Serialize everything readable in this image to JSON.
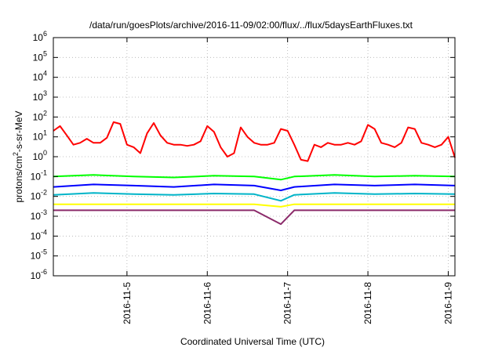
{
  "chart_data": {
    "type": "line",
    "title": "/data/run/goesPlots/archive/2016-11-09/02:00/flux/../flux/5daysEarthFluxes.txt",
    "xlabel": "Coordinated Universal Time (UTC)",
    "ylabel": "protons/cm2-s-sr-MeV",
    "ylabel_parts": {
      "before_sup": "protons/cm",
      "sup": "2",
      "after_sup": "-s-sr-MeV"
    },
    "y_scale": "log",
    "ylim": [
      1e-06,
      1000000.0
    ],
    "y_ticks": [
      {
        "value": 1e-06,
        "base": "10",
        "exp": "-6"
      },
      {
        "value": 1e-05,
        "base": "10",
        "exp": "-5"
      },
      {
        "value": 0.0001,
        "base": "10",
        "exp": "-4"
      },
      {
        "value": 0.001,
        "base": "10",
        "exp": "-3"
      },
      {
        "value": 0.01,
        "base": "10",
        "exp": "-2"
      },
      {
        "value": 0.1,
        "base": "10",
        "exp": "-1"
      },
      {
        "value": 1,
        "base": "10",
        "exp": "0"
      },
      {
        "value": 10,
        "base": "10",
        "exp": "1"
      },
      {
        "value": 100,
        "base": "10",
        "exp": "2"
      },
      {
        "value": 1000,
        "base": "10",
        "exp": "3"
      },
      {
        "value": 10000,
        "base": "10",
        "exp": "4"
      },
      {
        "value": 100000,
        "base": "10",
        "exp": "5"
      },
      {
        "value": 1000000,
        "base": "10",
        "exp": "6"
      }
    ],
    "xlim": [
      "2016-11-04 02:00",
      "2016-11-09 02:00"
    ],
    "x_ticks": [
      "2016-11-5",
      "2016-11-6",
      "2016-11-7",
      "2016-11-8",
      "2016-11-9"
    ],
    "grid": true,
    "series": [
      {
        "color": "#ff0000",
        "x": [
          "2016-11-04 02:00",
          "2016-11-04 04:00",
          "2016-11-04 06:00",
          "2016-11-04 08:00",
          "2016-11-04 10:00",
          "2016-11-04 12:00",
          "2016-11-04 14:00",
          "2016-11-04 16:00",
          "2016-11-04 18:00",
          "2016-11-04 20:00",
          "2016-11-04 22:00",
          "2016-11-05 00:00",
          "2016-11-05 02:00",
          "2016-11-05 04:00",
          "2016-11-05 06:00",
          "2016-11-05 08:00",
          "2016-11-05 10:00",
          "2016-11-05 12:00",
          "2016-11-05 14:00",
          "2016-11-05 16:00",
          "2016-11-05 18:00",
          "2016-11-05 20:00",
          "2016-11-05 22:00",
          "2016-11-06 00:00",
          "2016-11-06 02:00",
          "2016-11-06 04:00",
          "2016-11-06 06:00",
          "2016-11-06 08:00",
          "2016-11-06 10:00",
          "2016-11-06 12:00",
          "2016-11-06 14:00",
          "2016-11-06 16:00",
          "2016-11-06 18:00",
          "2016-11-06 20:00",
          "2016-11-06 22:00",
          "2016-11-07 00:00",
          "2016-11-07 02:00",
          "2016-11-07 04:00",
          "2016-11-07 06:00",
          "2016-11-07 08:00",
          "2016-11-07 10:00",
          "2016-11-07 12:00",
          "2016-11-07 14:00",
          "2016-11-07 16:00",
          "2016-11-07 18:00",
          "2016-11-07 20:00",
          "2016-11-07 22:00",
          "2016-11-08 00:00",
          "2016-11-08 02:00",
          "2016-11-08 04:00",
          "2016-11-08 06:00",
          "2016-11-08 08:00",
          "2016-11-08 10:00",
          "2016-11-08 12:00",
          "2016-11-08 14:00",
          "2016-11-08 16:00",
          "2016-11-08 18:00",
          "2016-11-08 20:00",
          "2016-11-08 22:00",
          "2016-11-09 00:00",
          "2016-11-09 02:00"
        ],
        "values": [
          20,
          35,
          12,
          4,
          5,
          8,
          5,
          5,
          9,
          55,
          45,
          4,
          3,
          1.5,
          15,
          50,
          12,
          5,
          4,
          4,
          3.5,
          4,
          6,
          35,
          18,
          3,
          1,
          1.5,
          30,
          10,
          5,
          4,
          4,
          5,
          25,
          20,
          4,
          0.7,
          0.6,
          4,
          3,
          5,
          4,
          4,
          5,
          4,
          6,
          40,
          25,
          5,
          4,
          3,
          5,
          30,
          25,
          5,
          4,
          3,
          4,
          10,
          0.9
        ]
      },
      {
        "color": "#00ff00",
        "x": [
          "2016-11-04 02:00",
          "2016-11-04 14:00",
          "2016-11-05 02:00",
          "2016-11-05 14:00",
          "2016-11-06 02:00",
          "2016-11-06 14:00",
          "2016-11-06 22:00",
          "2016-11-07 02:00",
          "2016-11-07 14:00",
          "2016-11-08 02:00",
          "2016-11-08 14:00",
          "2016-11-09 02:00"
        ],
        "values": [
          0.1,
          0.12,
          0.1,
          0.09,
          0.11,
          0.1,
          0.07,
          0.1,
          0.12,
          0.1,
          0.11,
          0.1
        ]
      },
      {
        "color": "#0000ff",
        "x": [
          "2016-11-04 02:00",
          "2016-11-04 14:00",
          "2016-11-05 02:00",
          "2016-11-05 14:00",
          "2016-11-06 02:00",
          "2016-11-06 14:00",
          "2016-11-06 22:00",
          "2016-11-07 02:00",
          "2016-11-07 14:00",
          "2016-11-08 02:00",
          "2016-11-08 14:00",
          "2016-11-09 02:00"
        ],
        "values": [
          0.03,
          0.04,
          0.035,
          0.03,
          0.04,
          0.035,
          0.02,
          0.03,
          0.04,
          0.035,
          0.04,
          0.035
        ]
      },
      {
        "color": "#00b4c8",
        "x": [
          "2016-11-04 02:00",
          "2016-11-04 14:00",
          "2016-11-05 02:00",
          "2016-11-05 14:00",
          "2016-11-06 02:00",
          "2016-11-06 14:00",
          "2016-11-06 22:00",
          "2016-11-07 02:00",
          "2016-11-07 14:00",
          "2016-11-08 02:00",
          "2016-11-08 14:00",
          "2016-11-09 02:00"
        ],
        "values": [
          0.012,
          0.015,
          0.013,
          0.012,
          0.014,
          0.013,
          0.006,
          0.012,
          0.015,
          0.013,
          0.014,
          0.013
        ]
      },
      {
        "color": "#ffff00",
        "x": [
          "2016-11-04 02:00",
          "2016-11-04 14:00",
          "2016-11-05 02:00",
          "2016-11-05 14:00",
          "2016-11-06 02:00",
          "2016-11-06 14:00",
          "2016-11-06 22:00",
          "2016-11-07 02:00",
          "2016-11-07 14:00",
          "2016-11-08 02:00",
          "2016-11-08 14:00",
          "2016-11-09 02:00"
        ],
        "values": [
          0.004,
          0.004,
          0.004,
          0.004,
          0.004,
          0.004,
          0.003,
          0.004,
          0.004,
          0.004,
          0.004,
          0.004
        ]
      },
      {
        "color": "#8b2a6a",
        "x": [
          "2016-11-04 02:00",
          "2016-11-04 14:00",
          "2016-11-05 02:00",
          "2016-11-05 14:00",
          "2016-11-06 02:00",
          "2016-11-06 14:00",
          "2016-11-06 22:00",
          "2016-11-07 02:00",
          "2016-11-07 14:00",
          "2016-11-08 02:00",
          "2016-11-08 14:00",
          "2016-11-09 02:00"
        ],
        "values": [
          0.002,
          0.002,
          0.002,
          0.002,
          0.002,
          0.002,
          0.0004,
          0.002,
          0.002,
          0.002,
          0.002,
          0.002
        ]
      }
    ]
  }
}
